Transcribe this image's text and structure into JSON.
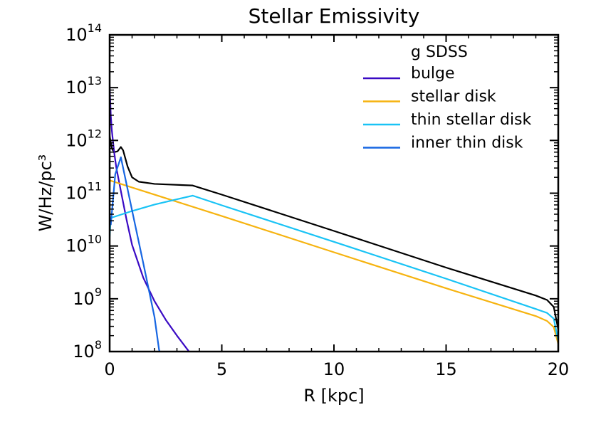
{
  "chart_data": {
    "type": "line",
    "title": "Stellar Emissivity",
    "xlabel": "R [kpc]",
    "ylabel": "W/Hz/pc³",
    "xlim": [
      0,
      20
    ],
    "ylim": [
      100000000.0,
      100000000000000.0
    ],
    "yscale": "log",
    "x_ticks": [
      {
        "value": 0,
        "label": "0"
      },
      {
        "value": 5,
        "label": "5"
      },
      {
        "value": 10,
        "label": "10"
      },
      {
        "value": 15,
        "label": "15"
      },
      {
        "value": 20,
        "label": "20"
      }
    ],
    "y_ticks": [
      {
        "exp": 8,
        "base": "10",
        "sup": "8"
      },
      {
        "exp": 9,
        "base": "10",
        "sup": "9"
      },
      {
        "exp": 10,
        "base": "10",
        "sup": "10"
      },
      {
        "exp": 11,
        "base": "10",
        "sup": "11"
      },
      {
        "exp": 12,
        "base": "10",
        "sup": "12"
      },
      {
        "exp": 13,
        "base": "10",
        "sup": "13"
      },
      {
        "exp": 14,
        "base": "10",
        "sup": "14"
      }
    ],
    "legend": {
      "title": "g SDSS",
      "placement": "top-right"
    },
    "series": [
      {
        "name": "total",
        "legend": false,
        "color": "#000000",
        "points": [
          [
            0.0,
            1200000000000.0
          ],
          [
            0.1,
            700000000000.0
          ],
          [
            0.2,
            600000000000.0
          ],
          [
            0.35,
            620000000000.0
          ],
          [
            0.5,
            750000000000.0
          ],
          [
            0.6,
            650000000000.0
          ],
          [
            0.8,
            320000000000.0
          ],
          [
            1.0,
            200000000000.0
          ],
          [
            1.3,
            165000000000.0
          ],
          [
            2.0,
            150000000000.0
          ],
          [
            3.7,
            140000000000.0
          ],
          [
            5,
            94000000000.0
          ],
          [
            10,
            19300000000.0
          ],
          [
            15,
            3900000000.0
          ],
          [
            19,
            1150000000.0
          ],
          [
            19.5,
            950000000.0
          ],
          [
            19.8,
            700000000.0
          ],
          [
            20.0,
            260000000.0
          ]
        ]
      },
      {
        "name": "bulge",
        "legend": true,
        "color": "#3a0ac4",
        "points": [
          [
            0.0,
            11000000000000.0
          ],
          [
            0.05,
            3000000000000.0
          ],
          [
            0.1,
            1500000000000.0
          ],
          [
            0.2,
            600000000000.0
          ],
          [
            0.3,
            300000000000.0
          ],
          [
            0.5,
            110000000000.0
          ],
          [
            0.75,
            32000000000.0
          ],
          [
            1.0,
            10500000000.0
          ],
          [
            1.5,
            2500000000.0
          ],
          [
            2.0,
            900000000.0
          ],
          [
            2.5,
            400000000.0
          ],
          [
            3.0,
            200000000.0
          ],
          [
            3.5,
            105000000.0
          ],
          [
            3.6,
            90000000.0
          ]
        ]
      },
      {
        "name": "stellar disk",
        "legend": true,
        "color": "#f6b30f",
        "points": [
          [
            0,
            175000000000.0
          ],
          [
            5,
            37000000000.0
          ],
          [
            10,
            7600000000.0
          ],
          [
            15,
            1580000000.0
          ],
          [
            19,
            470000000.0
          ],
          [
            19.5,
            380000000.0
          ],
          [
            19.8,
            290000000.0
          ],
          [
            20,
            140000000.0
          ]
        ]
      },
      {
        "name": "thin stellar disk",
        "legend": true,
        "color": "#19c3f5",
        "points": [
          [
            0,
            15000000000.0
          ],
          [
            0.05,
            34000000000.0
          ],
          [
            1,
            46000000000.0
          ],
          [
            2,
            61000000000.0
          ],
          [
            3.7,
            90000000000.0
          ],
          [
            5,
            59000000000.0
          ],
          [
            10,
            12000000000.0
          ],
          [
            15,
            2400000000.0
          ],
          [
            19,
            640000000.0
          ],
          [
            19.5,
            540000000.0
          ],
          [
            19.8,
            420000000.0
          ],
          [
            20,
            160000000.0
          ]
        ]
      },
      {
        "name": "inner thin disk",
        "legend": true,
        "color": "#1766e2",
        "points": [
          [
            0.05,
            25000000000.0
          ],
          [
            0.25,
            230000000000.0
          ],
          [
            0.5,
            480000000000.0
          ],
          [
            1.0,
            47000000000.0
          ],
          [
            1.5,
            4700000000.0
          ],
          [
            2.0,
            450000000.0
          ],
          [
            2.2,
            110000000.0
          ],
          [
            2.25,
            90000000.0
          ]
        ]
      }
    ]
  }
}
